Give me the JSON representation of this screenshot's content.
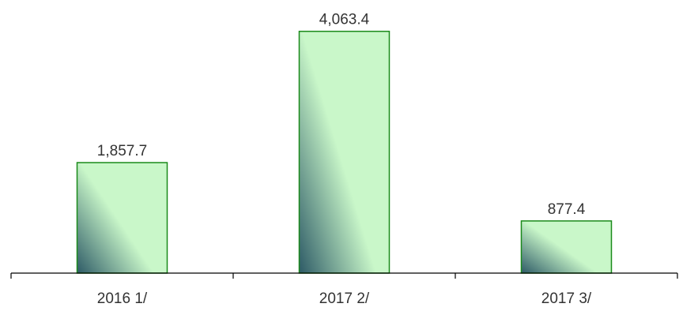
{
  "chart_data": {
    "type": "bar",
    "categories": [
      "2016 1/",
      "2017 2/",
      "2017 3/"
    ],
    "values": [
      1857.7,
      4063.4,
      877.4
    ],
    "data_labels": [
      "1,857.7",
      "4,063.4",
      "877.4"
    ],
    "title": "",
    "xlabel": "",
    "ylabel": "",
    "ylim": [
      0,
      4564
    ],
    "grid": false,
    "legend": "none",
    "colors": {
      "bar_border": "#1a8a1a",
      "bar_fill_light": "#c9f7c9",
      "bar_fill_dark": "#2d5a66",
      "axis": "#000000",
      "text": "#333333"
    }
  }
}
